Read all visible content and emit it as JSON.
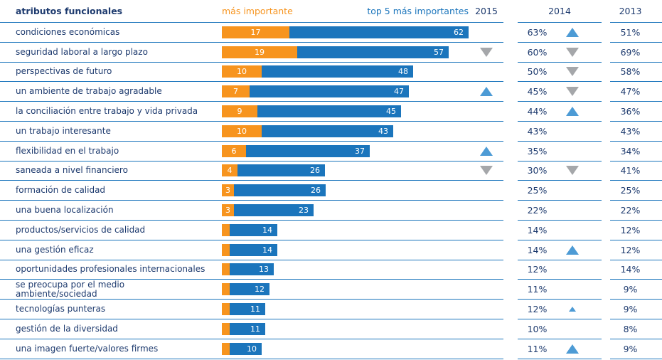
{
  "header": {
    "attributes": "atributos funcionales",
    "mas_importante": "más importante",
    "top5": "top 5 más importantes",
    "y2015": "2015",
    "y2014": "2014",
    "y2013": "2013"
  },
  "colors": {
    "navy": "#1d3a6e",
    "orange": "#f7941e",
    "bar_blue": "#1b75bc",
    "line_blue": "#1b75bc",
    "arrow_up_blue": "#4d9bd5",
    "arrow_down_gray": "#a5a7aa",
    "bar_value_text": "#ffffff",
    "background": "#ffffff"
  },
  "chart_data": {
    "type": "bar",
    "orientation": "horizontal-stacked",
    "title": "atributos funcionales",
    "legend": [
      "más importante",
      "top 5 más importantes"
    ],
    "legend_position": "top",
    "xlim": [
      0,
      62
    ],
    "grid": false,
    "categories": [
      "condiciones económicas",
      "seguridad laboral a largo plazo",
      "perspectivas de futuro",
      "un ambiente de trabajo agradable",
      "la conciliación entre trabajo y vida privada",
      "un trabajo interesante",
      "flexibilidad en el trabajo",
      "saneada a nivel financiero",
      "formación de calidad",
      "una buena localización",
      "productos/servicios de calidad",
      "una gestión eficaz",
      "oportunidades profesionales internacionales",
      "se preocupa por el medio\nambiente/sociedad",
      "tecnologías punteras",
      "gestión de la diversidad",
      "una imagen fuerte/valores firmes"
    ],
    "series": [
      {
        "name": "más importante",
        "color": "#f7941e",
        "values": [
          17,
          19,
          10,
          7,
          9,
          10,
          6,
          4,
          3,
          3,
          2,
          2,
          2,
          2,
          2,
          2,
          2
        ]
      },
      {
        "name": "top 5 más importantes",
        "color": "#1b75bc",
        "values": [
          62,
          57,
          48,
          47,
          45,
          43,
          37,
          26,
          26,
          23,
          14,
          14,
          13,
          12,
          11,
          11,
          10
        ]
      }
    ],
    "columns": {
      "trend_2015": [
        "",
        "down",
        "",
        "up",
        "",
        "",
        "up",
        "down",
        "",
        "",
        "",
        "",
        "",
        "",
        "",
        "",
        ""
      ],
      "pct_2014": [
        "63%",
        "60%",
        "50%",
        "45%",
        "44%",
        "43%",
        "35%",
        "30%",
        "25%",
        "22%",
        "14%",
        "14%",
        "12%",
        "11%",
        "12%",
        "10%",
        "11%"
      ],
      "trend_2014": [
        "up",
        "down",
        "down",
        "down",
        "up",
        "",
        "",
        "down",
        "",
        "",
        "",
        "up",
        "",
        "",
        "up-small",
        "",
        "up"
      ],
      "pct_2013": [
        "51%",
        "69%",
        "58%",
        "47%",
        "36%",
        "43%",
        "34%",
        "41%",
        "25%",
        "22%",
        "12%",
        "12%",
        "14%",
        "9%",
        "9%",
        "8%",
        "9%"
      ]
    },
    "trend_legend": {
      "up": "blue upward triangle",
      "down": "gray downward triangle",
      "up-small": "small blue upward triangle"
    }
  }
}
